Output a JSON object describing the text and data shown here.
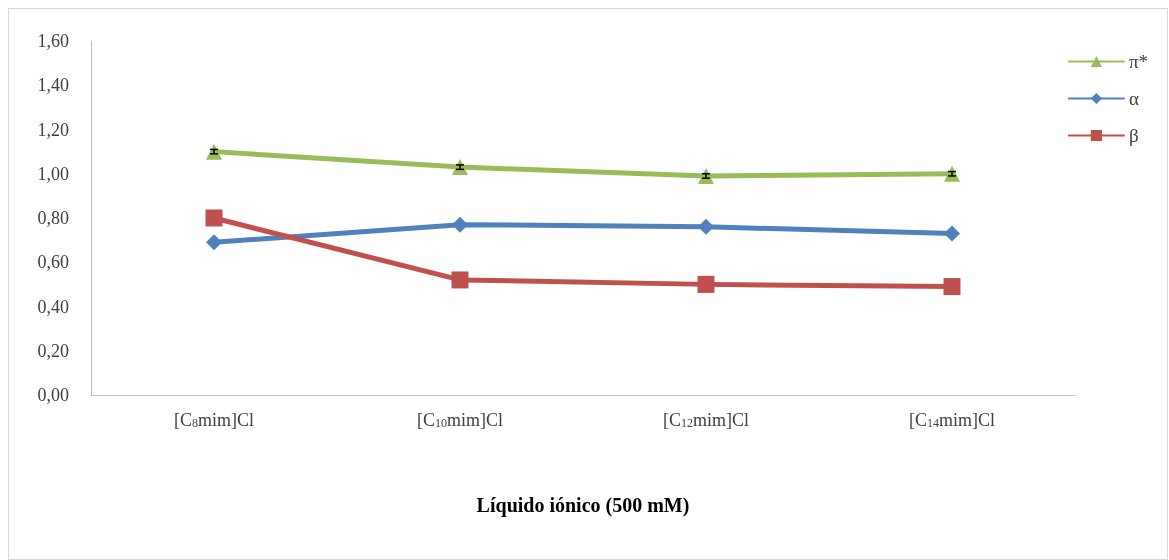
{
  "chart_data": {
    "type": "line",
    "xlabel": "Líquido iónico (500 mM)",
    "categories": [
      "[C$_{8}$mim]Cl",
      "[C$_{10}$mim]Cl",
      "[C$_{12}$mim]Cl",
      "[C$_{14}$mim]Cl"
    ],
    "series": [
      {
        "name": "π*",
        "color": "#9bbb59",
        "marker": "triangle",
        "values": [
          1.1,
          1.03,
          0.99,
          1.0
        ],
        "errors": [
          0.01,
          0.01,
          0.01,
          0.01
        ]
      },
      {
        "name": "α",
        "color": "#4f81bd",
        "marker": "diamond",
        "values": [
          0.69,
          0.77,
          0.76,
          0.73
        ]
      },
      {
        "name": "β",
        "color": "#c0504d",
        "marker": "square",
        "values": [
          0.8,
          0.52,
          0.5,
          0.49
        ]
      }
    ],
    "ylim": [
      0,
      1.6
    ],
    "yticks": [
      {
        "value": 0,
        "label": "0,00"
      },
      {
        "value": 0.2,
        "label": "0,20"
      },
      {
        "value": 0.4,
        "label": "0,40"
      },
      {
        "value": 0.6,
        "label": "0,60"
      },
      {
        "value": 0.8,
        "label": "0,80"
      },
      {
        "value": 1.0,
        "label": "1,00"
      },
      {
        "value": 1.2,
        "label": "1,20"
      },
      {
        "value": 1.4,
        "label": "1,40"
      },
      {
        "value": 1.6,
        "label": "1,60"
      }
    ],
    "grid": false,
    "legend": "top right",
    "line_style": "solid"
  }
}
